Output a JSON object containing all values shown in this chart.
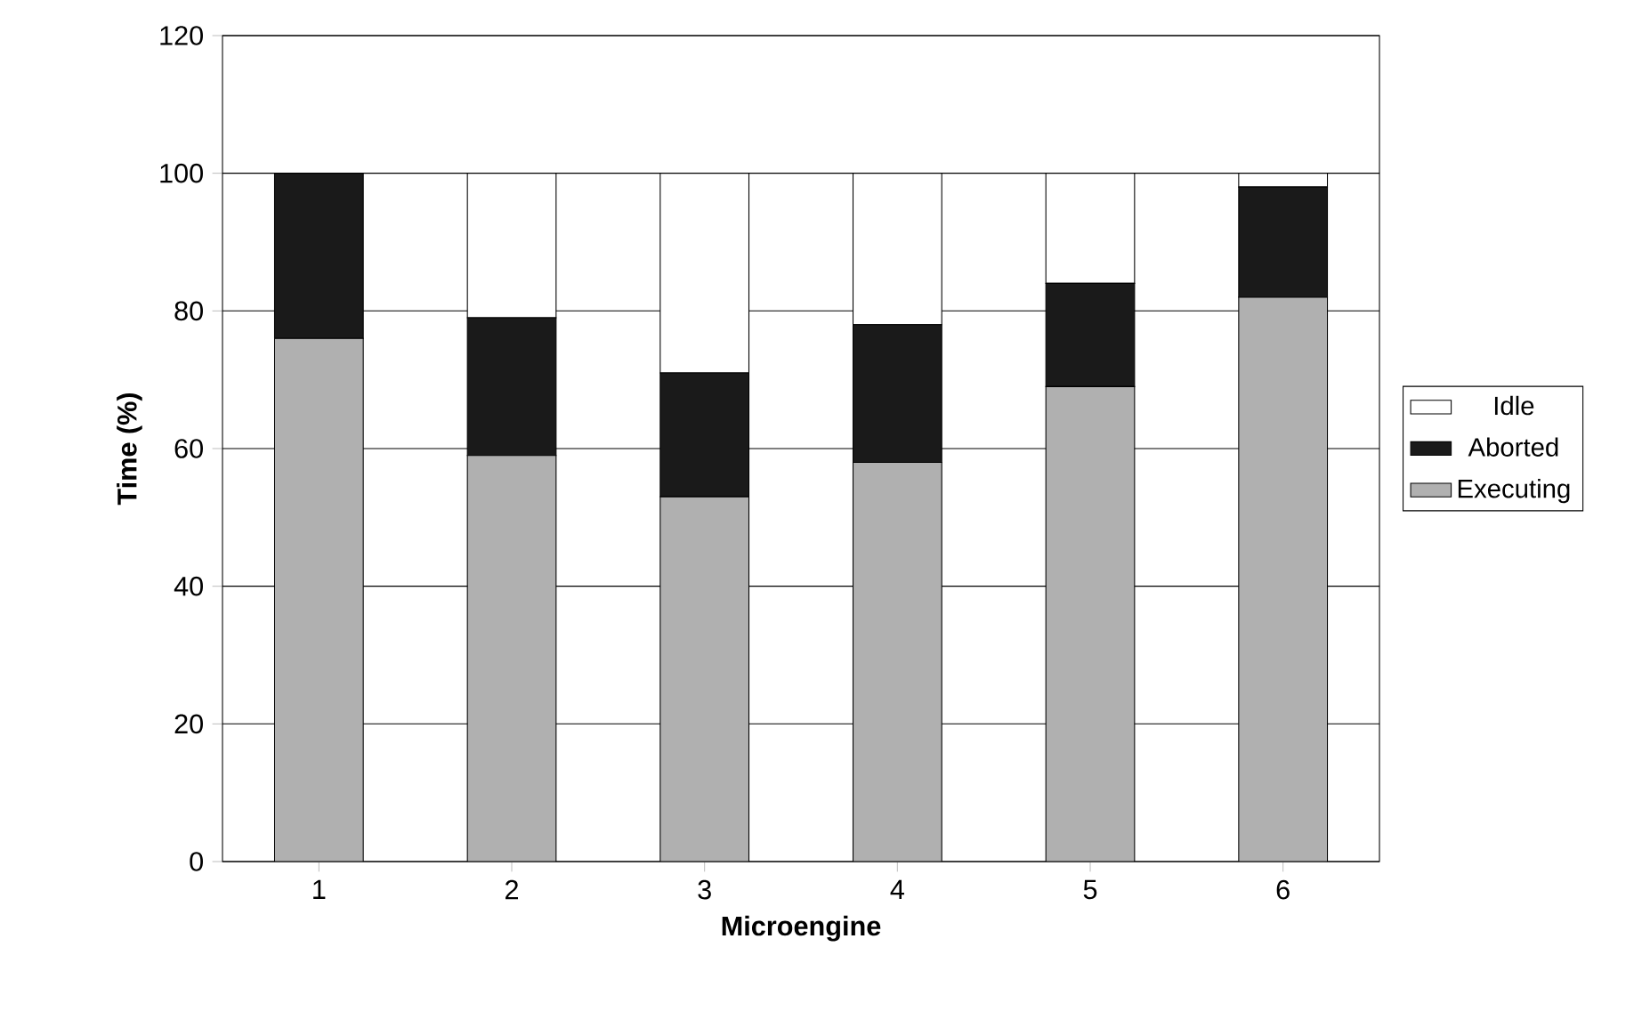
{
  "chart_data": {
    "type": "bar",
    "stacked": true,
    "xlabel": "Microengine",
    "ylabel": "Time (%)",
    "categories": [
      "1",
      "2",
      "3",
      "4",
      "5",
      "6"
    ],
    "series": [
      {
        "name": "Executing",
        "color": "#b0b0b0",
        "values": [
          76,
          59,
          53,
          58,
          69,
          82
        ]
      },
      {
        "name": "Aborted",
        "color": "#1a1a1a",
        "values": [
          24,
          20,
          18,
          20,
          15,
          16
        ]
      },
      {
        "name": "Idle",
        "color": "#ffffff",
        "values": [
          0,
          21,
          29,
          22,
          16,
          2
        ]
      }
    ],
    "ylim": [
      0,
      120
    ],
    "yticks": [
      0,
      20,
      40,
      60,
      80,
      100,
      120
    ],
    "grid": "y",
    "legend": "right"
  }
}
